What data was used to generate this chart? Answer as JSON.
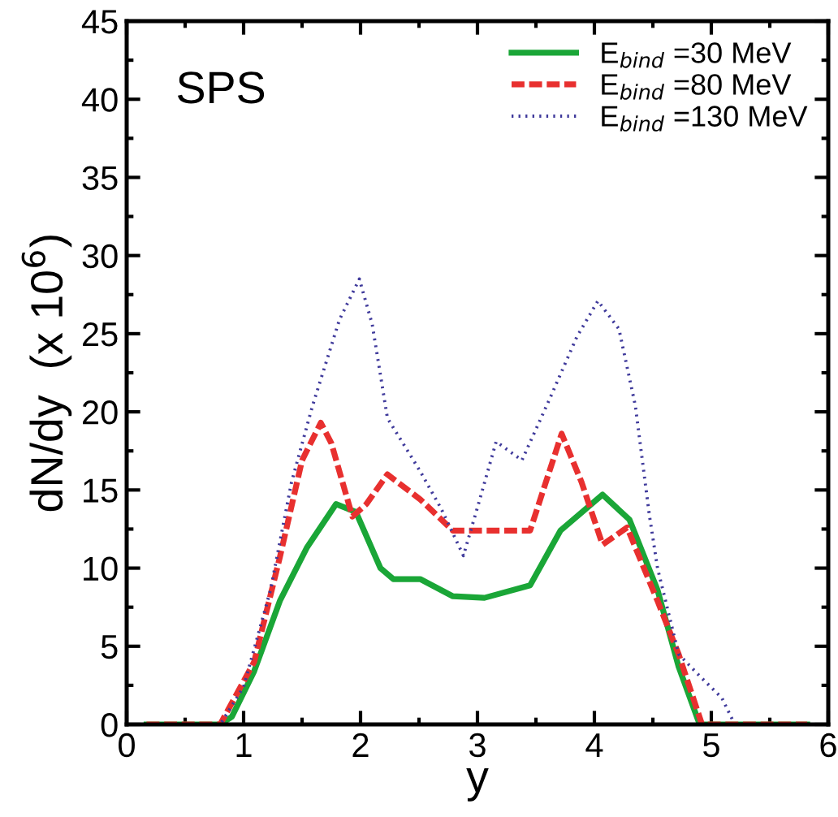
{
  "chart_data": {
    "type": "line",
    "xlabel": "y",
    "ylabel": "dN/dy  (x 10$^{6}$)",
    "annotations": [
      "SPS"
    ],
    "xlim": [
      0,
      6
    ],
    "ylim": [
      0,
      45
    ],
    "xticks": [
      0,
      1,
      2,
      3,
      4,
      5,
      6
    ],
    "yticks": [
      0,
      5,
      10,
      15,
      20,
      25,
      30,
      35,
      40,
      45
    ],
    "grid": false,
    "legend": "top right",
    "series": [
      {
        "name": "E$_{bind}$ =30 MeV",
        "color": "#1aa637",
        "line_style": "solid",
        "x": [
          0.17,
          0.8,
          0.9,
          1.09,
          1.31,
          1.54,
          1.79,
          1.96,
          2.17,
          2.28,
          2.51,
          2.79,
          3.06,
          3.45,
          3.71,
          4.07,
          4.3,
          4.54,
          4.72,
          4.9,
          5.82
        ],
        "values": [
          0,
          0,
          0.5,
          3.4,
          7.9,
          11.3,
          14.1,
          13.6,
          10.0,
          9.3,
          9.3,
          8.2,
          8.1,
          8.9,
          12.4,
          14.7,
          13.1,
          8.6,
          3.7,
          0,
          0
        ]
      },
      {
        "name": "E$_{bind}$ =80 MeV",
        "color": "#e8302f",
        "line_style": "dashed",
        "x": [
          0.17,
          0.8,
          1.09,
          1.31,
          1.5,
          1.66,
          1.75,
          1.93,
          2.05,
          2.23,
          2.51,
          2.79,
          3.45,
          3.72,
          3.89,
          4.07,
          4.28,
          4.54,
          4.72,
          4.92,
          5.82
        ],
        "values": [
          0,
          0,
          4.0,
          10.7,
          16.9,
          19.3,
          18.0,
          13.3,
          14.1,
          16.0,
          14.4,
          12.4,
          12.4,
          18.6,
          15.5,
          11.5,
          12.6,
          7.9,
          4.5,
          0,
          0
        ]
      },
      {
        "name": "E$_{bind}$ =130 MeV",
        "color": "#3f3a9b",
        "line_style": "dotted",
        "x": [
          0.17,
          0.8,
          1.0,
          1.23,
          1.41,
          1.59,
          1.82,
          1.99,
          2.1,
          2.23,
          2.51,
          2.69,
          2.88,
          3.02,
          3.16,
          3.38,
          3.61,
          3.85,
          4.03,
          4.21,
          4.35,
          4.47,
          4.54,
          4.72,
          4.9,
          5.09,
          5.2,
          5.82
        ],
        "values": [
          0,
          0,
          2.4,
          8.6,
          15.5,
          20.4,
          25.9,
          28.5,
          25.6,
          19.6,
          16.2,
          13.8,
          10.8,
          14.4,
          18.1,
          16.9,
          20.7,
          24.8,
          27.1,
          25.3,
          20.4,
          13.4,
          10.0,
          4.5,
          3.1,
          1.7,
          0,
          0
        ]
      }
    ]
  }
}
